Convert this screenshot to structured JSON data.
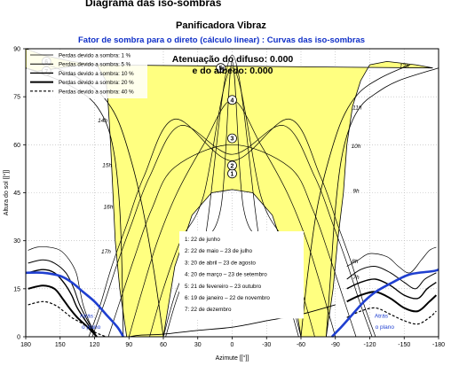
{
  "header": {
    "title": "Diagrama das iso-sombras",
    "subtitle": "Panificadora Vibraz",
    "chart_caption": "Fator de sombra para o direto (cálculo linear) : Curvas das iso-sombras"
  },
  "colors": {
    "shade": "#ffff80",
    "sun_path": "#000000",
    "horizon_line": "#1f3fd0",
    "caption": "#1030c8"
  },
  "chart_data": {
    "type": "line",
    "xlabel": "Azimute [[°]]",
    "ylabel": "Altura do sol [[°]]",
    "xlim": [
      180,
      -180
    ],
    "ylim": [
      0,
      90
    ],
    "xticks": [
      "180",
      "150",
      "120",
      "90",
      "60",
      "30",
      "0",
      "-30",
      "-60",
      "-90",
      "-120",
      "-150",
      "-180"
    ],
    "yticks": [
      "0",
      "15",
      "30",
      "45",
      "60",
      "75",
      "90"
    ],
    "grid": true,
    "legend_position": "top-left",
    "legend": [
      {
        "label": "Perdas devido a sombra: 1 %",
        "style": "thin-solid"
      },
      {
        "label": "Perdas devido a sombra: 5 %",
        "style": "solid"
      },
      {
        "label": "Perdas devido a sombra: 10 %",
        "style": "medium-solid"
      },
      {
        "label": "Perdas devido a sombra: 20 %",
        "style": "thick-solid"
      },
      {
        "label": "Perdas devido a sombra: 40 %",
        "style": "dashed"
      }
    ],
    "info": {
      "line1": "Atenuação do difuso: 0.000",
      "line2": "e do albedo: 0.000"
    },
    "date_legend": [
      "1: 22 de junho",
      "2: 22 de maio – 23 de julho",
      "3: 20 de abril – 23 de agosto",
      "4: 20 de março – 23 de setembro",
      "5: 21 de fevereiro – 23 outubro",
      "6: 19 de janeiro – 22 de novembro",
      "7: 22 de dezembro"
    ],
    "sun_paths": [
      {
        "id": "1",
        "points": [
          [
            -125,
            0
          ],
          [
            -115,
            10
          ],
          [
            -105,
            22
          ],
          [
            -92,
            35
          ],
          [
            -77,
            50
          ],
          [
            -50,
            68
          ],
          [
            0,
            55
          ],
          [
            50,
            68
          ],
          [
            77,
            50
          ],
          [
            92,
            35
          ],
          [
            105,
            22
          ],
          [
            115,
            10
          ],
          [
            125,
            0
          ]
        ]
      },
      {
        "id": "2",
        "points": [
          [
            -122,
            0
          ],
          [
            -112,
            10
          ],
          [
            -101,
            22
          ],
          [
            -88,
            35
          ],
          [
            -72,
            50
          ],
          [
            -45,
            66
          ],
          [
            0,
            57
          ],
          [
            45,
            66
          ],
          [
            72,
            50
          ],
          [
            88,
            35
          ],
          [
            101,
            22
          ],
          [
            112,
            10
          ],
          [
            122,
            0
          ]
        ]
      },
      {
        "id": "3",
        "points": [
          [
            -108,
            0
          ],
          [
            -97,
            12
          ],
          [
            -85,
            25
          ],
          [
            -70,
            40
          ],
          [
            -50,
            53
          ],
          [
            0,
            60
          ],
          [
            50,
            53
          ],
          [
            70,
            40
          ],
          [
            85,
            25
          ],
          [
            97,
            12
          ],
          [
            108,
            0
          ]
        ]
      },
      {
        "id": "4",
        "points": [
          [
            -90,
            0
          ],
          [
            -78,
            15
          ],
          [
            -65,
            30
          ],
          [
            -48,
            45
          ],
          [
            -25,
            60
          ],
          [
            0,
            74
          ],
          [
            25,
            60
          ],
          [
            48,
            45
          ],
          [
            65,
            30
          ],
          [
            78,
            15
          ],
          [
            90,
            0
          ]
        ]
      },
      {
        "id": "5",
        "points": [
          [
            -72,
            0
          ],
          [
            -60,
            15
          ],
          [
            -45,
            30
          ],
          [
            -25,
            44
          ],
          [
            0,
            84
          ],
          [
            25,
            44
          ],
          [
            45,
            30
          ],
          [
            60,
            15
          ],
          [
            72,
            0
          ]
        ]
      },
      {
        "id": "6",
        "points": [
          [
            -60,
            0
          ],
          [
            -48,
            15
          ],
          [
            -30,
            28
          ],
          [
            -10,
            40
          ],
          [
            0,
            86
          ],
          [
            10,
            40
          ],
          [
            30,
            28
          ],
          [
            48,
            15
          ],
          [
            60,
            0
          ]
        ]
      },
      {
        "id": "7",
        "points": [
          [
            -58,
            0
          ],
          [
            -45,
            15
          ],
          [
            -25,
            28
          ],
          [
            0,
            88
          ],
          [
            25,
            28
          ],
          [
            45,
            15
          ],
          [
            58,
            0
          ]
        ]
      }
    ],
    "path_labels": [
      {
        "id": "1",
        "az": 0,
        "alt": 51
      },
      {
        "id": "2",
        "az": 0,
        "alt": 53.5
      },
      {
        "id": "3",
        "az": 0,
        "alt": 62
      },
      {
        "id": "4",
        "az": 0,
        "alt": 74
      },
      {
        "id": "5",
        "az": 10,
        "alt": 84
      },
      {
        "id": "6",
        "az": 162,
        "alt": 86
      },
      {
        "id": "7",
        "az": 162,
        "alt": 83
      }
    ],
    "hour_labels": [
      {
        "text": "14h",
        "az": 113,
        "alt": 67
      },
      {
        "text": "15h",
        "az": 109,
        "alt": 53
      },
      {
        "text": "16h",
        "az": 108,
        "alt": 40
      },
      {
        "text": "17h",
        "az": 110,
        "alt": 26
      },
      {
        "text": "12h",
        "az": -150,
        "alt": 84
      },
      {
        "text": "11h",
        "az": -109,
        "alt": 71
      },
      {
        "text": "10h",
        "az": -108,
        "alt": 59
      },
      {
        "text": "9h",
        "az": -108,
        "alt": 45
      },
      {
        "text": "8h",
        "az": -107,
        "alt": 23
      },
      {
        "text": "7h",
        "az": -108,
        "alt": 18
      }
    ],
    "horizon_labels": [
      {
        "text": "Atrás",
        "az": 127,
        "alt": 6
      },
      {
        "text": "o plano",
        "az": 123,
        "alt": 2.5
      },
      {
        "text": "Atrás",
        "az": -130,
        "alt": 6
      },
      {
        "text": "o plano",
        "az": -133,
        "alt": 2.5
      }
    ],
    "shade_region": [
      [
        -175,
        84
      ],
      [
        -160,
        85
      ],
      [
        -135,
        86
      ],
      [
        -120,
        85
      ],
      [
        -112,
        80
      ],
      [
        -105,
        72
      ],
      [
        -100,
        60
      ],
      [
        -97,
        45
      ],
      [
        -92,
        30
      ],
      [
        -88,
        15
      ],
      [
        -82,
        0
      ],
      [
        -60,
        0
      ],
      [
        -50,
        22
      ],
      [
        -35,
        38
      ],
      [
        -18,
        45
      ],
      [
        0,
        46
      ],
      [
        18,
        45
      ],
      [
        35,
        38
      ],
      [
        50,
        22
      ],
      [
        60,
        0
      ],
      [
        92,
        0
      ],
      [
        98,
        15
      ],
      [
        102,
        30
      ],
      [
        104,
        45
      ],
      [
        106,
        60
      ],
      [
        108,
        72
      ],
      [
        110,
        80
      ],
      [
        118,
        85
      ],
      [
        140,
        86
      ],
      [
        165,
        88
      ],
      [
        180,
        90
      ],
      [
        180,
        84
      ],
      [
        170,
        83
      ],
      [
        150,
        84
      ],
      [
        130,
        85
      ]
    ],
    "horizon_blue_left": [
      [
        180,
        20
      ],
      [
        165,
        20
      ],
      [
        150,
        19
      ],
      [
        140,
        17
      ],
      [
        130,
        14
      ],
      [
        120,
        11
      ],
      [
        110,
        7
      ],
      [
        100,
        3
      ],
      [
        95,
        0
      ]
    ],
    "horizon_blue_right": [
      [
        -87,
        0
      ],
      [
        -95,
        3
      ],
      [
        -105,
        7
      ],
      [
        -115,
        11
      ],
      [
        -125,
        14
      ],
      [
        -140,
        17
      ],
      [
        -155,
        19.5
      ],
      [
        -175,
        20.5
      ],
      [
        -180,
        21
      ]
    ],
    "iso_left": [
      {
        "name": "1",
        "style": "thin",
        "points": [
          [
            178,
            27
          ],
          [
            170,
            28
          ],
          [
            160,
            28
          ],
          [
            150,
            27
          ],
          [
            142,
            24
          ],
          [
            136,
            20
          ],
          [
            133,
            15
          ],
          [
            130,
            10
          ],
          [
            125,
            5
          ],
          [
            118,
            0
          ]
        ]
      },
      {
        "name": "5",
        "style": "solid",
        "points": [
          [
            178,
            23
          ],
          [
            165,
            24
          ],
          [
            155,
            23
          ],
          [
            145,
            20
          ],
          [
            138,
            15
          ],
          [
            133,
            10
          ],
          [
            126,
            5
          ],
          [
            118,
            0
          ]
        ]
      },
      {
        "name": "10",
        "style": "medium",
        "points": [
          [
            178,
            20
          ],
          [
            165,
            21
          ],
          [
            155,
            20
          ],
          [
            147,
            17
          ],
          [
            140,
            13
          ],
          [
            135,
            9
          ],
          [
            126,
            4
          ],
          [
            118,
            0
          ]
        ]
      },
      {
        "name": "20",
        "style": "thick",
        "points": [
          [
            178,
            15
          ],
          [
            165,
            16
          ],
          [
            155,
            15
          ],
          [
            148,
            12
          ],
          [
            142,
            9
          ],
          [
            135,
            6
          ],
          [
            126,
            3
          ],
          [
            118,
            0
          ]
        ]
      },
      {
        "name": "40",
        "style": "dashed",
        "points": [
          [
            178,
            10
          ],
          [
            165,
            11
          ],
          [
            155,
            10
          ],
          [
            147,
            8
          ],
          [
            140,
            6
          ],
          [
            130,
            4
          ],
          [
            120,
            1.5
          ],
          [
            110,
            0
          ]
        ]
      }
    ],
    "iso_right": [
      {
        "name": "1",
        "style": "thin",
        "points": [
          [
            -100,
            22
          ],
          [
            -110,
            24
          ],
          [
            -120,
            26
          ],
          [
            -135,
            25
          ],
          [
            -145,
            22
          ],
          [
            -155,
            20
          ],
          [
            -165,
            24
          ],
          [
            -172,
            27
          ],
          [
            -178,
            28
          ]
        ]
      },
      {
        "name": "5",
        "style": "solid",
        "points": [
          [
            -100,
            18
          ],
          [
            -112,
            21
          ],
          [
            -125,
            22
          ],
          [
            -138,
            20
          ],
          [
            -150,
            17
          ],
          [
            -160,
            15
          ],
          [
            -168,
            18
          ],
          [
            -178,
            20
          ]
        ]
      },
      {
        "name": "10",
        "style": "medium",
        "points": [
          [
            -100,
            15
          ],
          [
            -112,
            17
          ],
          [
            -125,
            18
          ],
          [
            -138,
            16
          ],
          [
            -150,
            13
          ],
          [
            -162,
            12
          ],
          [
            -170,
            15
          ],
          [
            -178,
            17
          ]
        ]
      },
      {
        "name": "20",
        "style": "thick",
        "points": [
          [
            -100,
            11
          ],
          [
            -112,
            13
          ],
          [
            -125,
            14
          ],
          [
            -138,
            12
          ],
          [
            -150,
            9
          ],
          [
            -162,
            8
          ],
          [
            -172,
            11
          ],
          [
            -178,
            13
          ]
        ]
      },
      {
        "name": "40",
        "style": "dashed",
        "points": [
          [
            -100,
            6
          ],
          [
            -112,
            8
          ],
          [
            -125,
            9
          ],
          [
            -138,
            7
          ],
          [
            -150,
            5
          ],
          [
            -162,
            4
          ],
          [
            -172,
            6
          ],
          [
            -178,
            8
          ]
        ]
      }
    ],
    "arches": [
      [
        [
          95,
          0
        ],
        [
          96,
          20
        ],
        [
          98,
          40
        ],
        [
          102,
          55
        ],
        [
          108,
          65
        ],
        [
          118,
          72
        ],
        [
          130,
          76
        ],
        [
          150,
          80
        ],
        [
          180,
          84
        ]
      ],
      [
        [
          -82,
          0
        ],
        [
          -86,
          20
        ],
        [
          -90,
          40
        ],
        [
          -95,
          55
        ],
        [
          -102,
          65
        ],
        [
          -112,
          72
        ],
        [
          -125,
          76
        ],
        [
          -145,
          80
        ],
        [
          -180,
          84
        ]
      ],
      [
        [
          60,
          0
        ],
        [
          68,
          20
        ],
        [
          78,
          40
        ],
        [
          88,
          55
        ],
        [
          100,
          68
        ],
        [
          115,
          76
        ],
        [
          135,
          81
        ],
        [
          160,
          85
        ]
      ],
      [
        [
          -60,
          0
        ],
        [
          -66,
          20
        ],
        [
          -74,
          40
        ],
        [
          -84,
          55
        ],
        [
          -96,
          68
        ],
        [
          -110,
          76
        ],
        [
          -130,
          81
        ],
        [
          -155,
          85
        ]
      ]
    ],
    "ground_line": [
      [
        -90,
        10
      ],
      [
        -60,
        7
      ],
      [
        -30,
        5
      ],
      [
        0,
        3
      ],
      [
        30,
        2
      ],
      [
        60,
        0.8
      ],
      [
        80,
        0.5
      ],
      [
        90,
        0
      ]
    ]
  }
}
